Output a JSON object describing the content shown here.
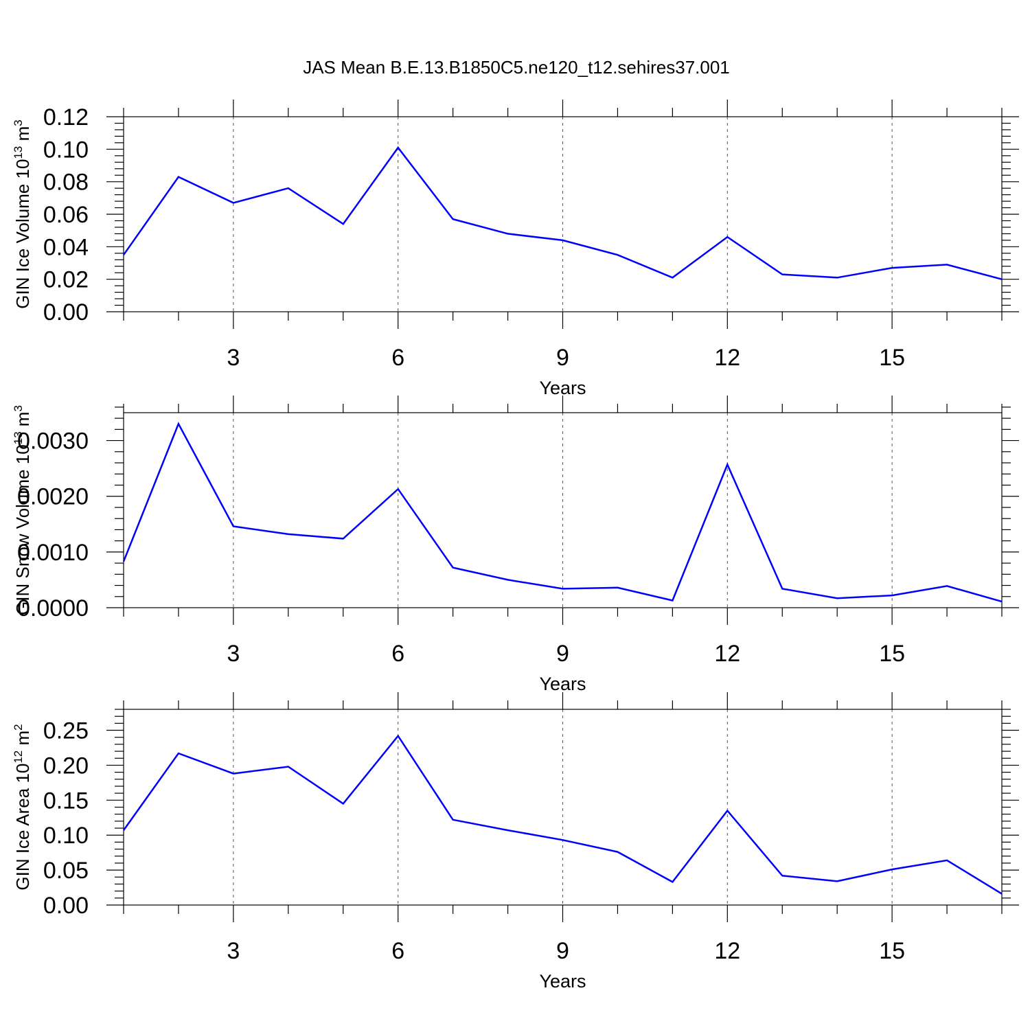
{
  "title": "JAS Mean B.E.13.B1850C5.ne120_t12.sehires37.001",
  "colors": {
    "series": "#0000ff",
    "axis": "#000000",
    "grid": "#555555"
  },
  "chart_data": [
    {
      "type": "line",
      "ylabel": {
        "prefix": "GIN Ice Volume 10",
        "exp": "13",
        "unit": " m",
        "unit_exp": "3"
      },
      "xlabel": "Years",
      "xlim": [
        1,
        17
      ],
      "ylim": [
        0,
        0.12
      ],
      "xticks": [
        3,
        6,
        9,
        12,
        15
      ],
      "xtick_labels": [
        "3",
        "6",
        "9",
        "12",
        "15"
      ],
      "yticks": [
        0,
        0.02,
        0.04,
        0.06,
        0.08,
        0.1,
        0.12
      ],
      "ytick_labels": [
        "0.00",
        "0.02",
        "0.04",
        "0.06",
        "0.08",
        "0.10",
        "0.12"
      ],
      "grid": "vertical dashed at major x ticks",
      "series": [
        {
          "name": "GIN Ice Volume",
          "x": [
            1,
            2,
            3,
            4,
            5,
            6,
            7,
            8,
            9,
            10,
            11,
            12,
            13,
            14,
            15,
            16,
            17
          ],
          "values": [
            0.035,
            0.083,
            0.067,
            0.076,
            0.054,
            0.101,
            0.057,
            0.048,
            0.044,
            0.035,
            0.021,
            0.046,
            0.023,
            0.021,
            0.027,
            0.029,
            0.02
          ]
        }
      ]
    },
    {
      "type": "line",
      "ylabel": {
        "prefix": "GIN Snow Volume 10",
        "exp": "13",
        "unit": " m",
        "unit_exp": "3"
      },
      "xlabel": "Years",
      "xlim": [
        1,
        17
      ],
      "ylim": [
        0,
        0.0035
      ],
      "xticks": [
        3,
        6,
        9,
        12,
        15
      ],
      "xtick_labels": [
        "3",
        "6",
        "9",
        "12",
        "15"
      ],
      "yticks": [
        0,
        0.001,
        0.002,
        0.003
      ],
      "ytick_labels": [
        "0.0000",
        "0.0010",
        "0.0020",
        "0.0030"
      ],
      "grid": "vertical dashed at major x ticks",
      "series": [
        {
          "name": "GIN Snow Volume",
          "x": [
            1,
            2,
            3,
            4,
            5,
            6,
            7,
            8,
            9,
            10,
            11,
            12,
            13,
            14,
            15,
            16,
            17
          ],
          "values": [
            0.00083,
            0.0033,
            0.00146,
            0.00132,
            0.00124,
            0.00213,
            0.00072,
            0.0005,
            0.00034,
            0.00036,
            0.00013,
            0.00257,
            0.00034,
            0.00017,
            0.00022,
            0.00039,
            0.00011
          ]
        }
      ]
    },
    {
      "type": "line",
      "ylabel": {
        "prefix": "GIN Ice Area 10",
        "exp": "12",
        "unit": " m",
        "unit_exp": "2"
      },
      "xlabel": "Years",
      "xlim": [
        1,
        17
      ],
      "ylim": [
        0,
        0.28
      ],
      "xticks": [
        3,
        6,
        9,
        12,
        15
      ],
      "xtick_labels": [
        "3",
        "6",
        "9",
        "12",
        "15"
      ],
      "yticks": [
        0,
        0.05,
        0.1,
        0.15,
        0.2,
        0.25
      ],
      "ytick_labels": [
        "0.00",
        "0.05",
        "0.10",
        "0.15",
        "0.20",
        "0.25"
      ],
      "grid": "vertical dashed at major x ticks",
      "series": [
        {
          "name": "GIN Ice Area",
          "x": [
            1,
            2,
            3,
            4,
            5,
            6,
            7,
            8,
            9,
            10,
            11,
            12,
            13,
            14,
            15,
            16,
            17
          ],
          "values": [
            0.107,
            0.217,
            0.188,
            0.198,
            0.145,
            0.242,
            0.122,
            0.107,
            0.093,
            0.076,
            0.033,
            0.135,
            0.042,
            0.034,
            0.051,
            0.064,
            0.016
          ]
        }
      ]
    }
  ]
}
